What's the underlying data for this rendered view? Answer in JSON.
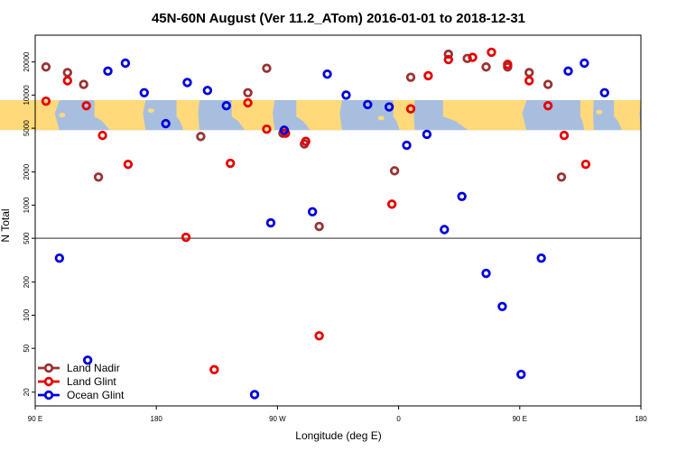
{
  "chart_data": {
    "type": "scatter",
    "title": "45N-60N August (Ver 11.2_ATom)   2016-01-01 to 2018-12-31",
    "xlabel": "Longitude (deg E)",
    "ylabel": "N Total",
    "xlim": [
      90,
      540
    ],
    "ylim": [
      15,
      35000
    ],
    "y_scale": "log",
    "x_ticks": [
      {
        "value": 90,
        "label": "90 E"
      },
      {
        "value": 180,
        "label": "180"
      },
      {
        "value": 270,
        "label": "90 W"
      },
      {
        "value": 360,
        "label": "0"
      },
      {
        "value": 450,
        "label": "90 E"
      },
      {
        "value": 540,
        "label": "180"
      }
    ],
    "y_ticks": [
      {
        "value": 20,
        "label": "20"
      },
      {
        "value": 50,
        "label": "50"
      },
      {
        "value": 100,
        "label": "100"
      },
      {
        "value": 200,
        "label": "200"
      },
      {
        "value": 500,
        "label": "500"
      },
      {
        "value": 1000,
        "label": "1000"
      },
      {
        "value": 2000,
        "label": "2000"
      },
      {
        "value": 5000,
        "label": "5000"
      },
      {
        "value": 10000,
        "label": "10000"
      },
      {
        "value": 20000,
        "label": "20000"
      }
    ],
    "reference_line_y": 500,
    "map_band": {
      "y_min": 4800,
      "y_max": 9000,
      "ocean_color": "#a7bedf",
      "land_color": "#ffd97a"
    },
    "legend_position": "bottom-left",
    "series": [
      {
        "name": "Land Nadir",
        "color": "#993333",
        "points": [
          {
            "x": 98,
            "y": 18000
          },
          {
            "x": 114,
            "y": 16000
          },
          {
            "x": 126,
            "y": 12500
          },
          {
            "x": 137,
            "y": 1800
          },
          {
            "x": 213,
            "y": 4200
          },
          {
            "x": 248,
            "y": 10500
          },
          {
            "x": 262,
            "y": 17500
          },
          {
            "x": 274,
            "y": 4500
          },
          {
            "x": 290,
            "y": 3600
          },
          {
            "x": 301,
            "y": 640
          },
          {
            "x": 357,
            "y": 2050
          },
          {
            "x": 369,
            "y": 14500
          },
          {
            "x": 397,
            "y": 23500
          },
          {
            "x": 411,
            "y": 21500
          },
          {
            "x": 425,
            "y": 18000
          },
          {
            "x": 441,
            "y": 18000
          },
          {
            "x": 457,
            "y": 16000
          },
          {
            "x": 471,
            "y": 12500
          },
          {
            "x": 481,
            "y": 1800
          }
        ]
      },
      {
        "name": "Land Glint",
        "color": "#e60000",
        "points": [
          {
            "x": 98,
            "y": 8800
          },
          {
            "x": 114,
            "y": 13500
          },
          {
            "x": 128,
            "y": 8000
          },
          {
            "x": 140,
            "y": 4300
          },
          {
            "x": 159,
            "y": 2350
          },
          {
            "x": 202,
            "y": 510
          },
          {
            "x": 223,
            "y": 32
          },
          {
            "x": 235,
            "y": 2400
          },
          {
            "x": 248,
            "y": 8500
          },
          {
            "x": 262,
            "y": 4900
          },
          {
            "x": 276,
            "y": 4500
          },
          {
            "x": 291,
            "y": 3800
          },
          {
            "x": 301,
            "y": 65
          },
          {
            "x": 355,
            "y": 1020
          },
          {
            "x": 369,
            "y": 7500
          },
          {
            "x": 382,
            "y": 15000
          },
          {
            "x": 397,
            "y": 21000
          },
          {
            "x": 415,
            "y": 22000
          },
          {
            "x": 429,
            "y": 24500
          },
          {
            "x": 441,
            "y": 19000
          },
          {
            "x": 457,
            "y": 13500
          },
          {
            "x": 471,
            "y": 8000
          },
          {
            "x": 483,
            "y": 4300
          },
          {
            "x": 499,
            "y": 2350
          }
        ]
      },
      {
        "name": "Ocean Glint",
        "color": "#0000dd",
        "points": [
          {
            "x": 108,
            "y": 330
          },
          {
            "x": 129,
            "y": 39
          },
          {
            "x": 144,
            "y": 16500
          },
          {
            "x": 157,
            "y": 19500
          },
          {
            "x": 171,
            "y": 10500
          },
          {
            "x": 187,
            "y": 5500
          },
          {
            "x": 203,
            "y": 13000
          },
          {
            "x": 218,
            "y": 11000
          },
          {
            "x": 232,
            "y": 8000
          },
          {
            "x": 253,
            "y": 19
          },
          {
            "x": 265,
            "y": 690
          },
          {
            "x": 275,
            "y": 4800
          },
          {
            "x": 296,
            "y": 870
          },
          {
            "x": 307,
            "y": 15500
          },
          {
            "x": 321,
            "y": 10000
          },
          {
            "x": 337,
            "y": 8200
          },
          {
            "x": 353,
            "y": 7800
          },
          {
            "x": 366,
            "y": 3500
          },
          {
            "x": 381,
            "y": 4400
          },
          {
            "x": 394,
            "y": 600
          },
          {
            "x": 407,
            "y": 1200
          },
          {
            "x": 425,
            "y": 240
          },
          {
            "x": 437,
            "y": 120
          },
          {
            "x": 451,
            "y": 29
          },
          {
            "x": 466,
            "y": 330
          },
          {
            "x": 486,
            "y": 16500
          },
          {
            "x": 498,
            "y": 19500
          },
          {
            "x": 513,
            "y": 10500
          }
        ]
      }
    ]
  }
}
